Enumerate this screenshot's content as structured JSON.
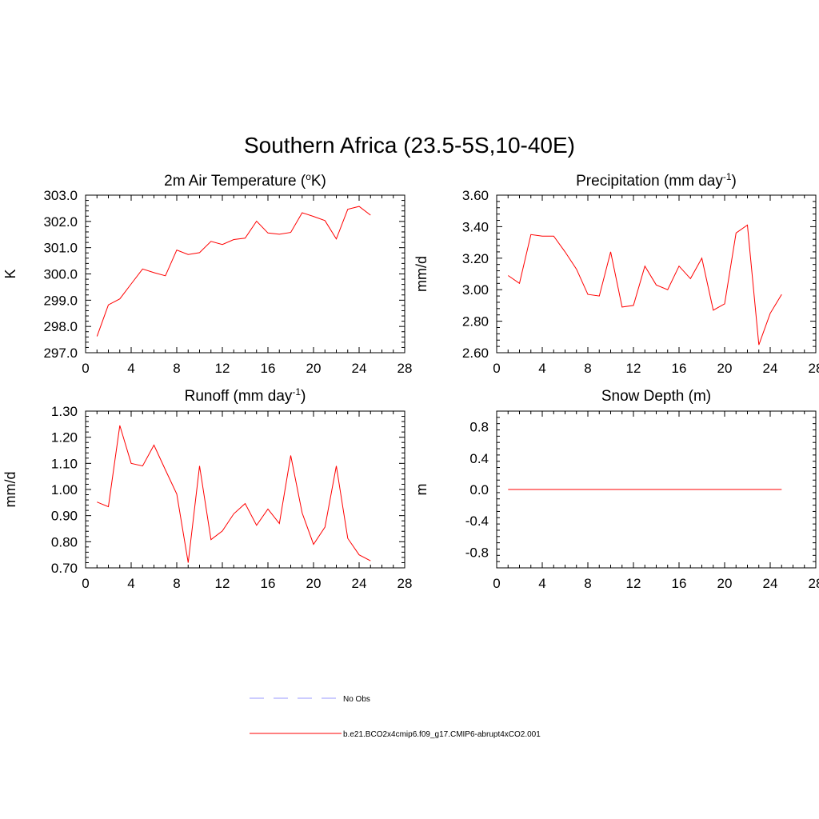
{
  "page_title": "Southern Africa (23.5-5S,10-40E)",
  "chart_data": [
    {
      "type": "line",
      "title": "2m Air Temperature (",
      "title_sup": "o",
      "title_tail": "K)",
      "ylabel": "K",
      "xlim": [
        0,
        28
      ],
      "ylim": [
        297.0,
        303.0
      ],
      "xticks": [
        "0",
        "4",
        "8",
        "12",
        "16",
        "20",
        "24",
        "28"
      ],
      "yticks": [
        "297.0",
        "298.0",
        "299.0",
        "300.0",
        "301.0",
        "302.0",
        "303.0"
      ],
      "grid": false,
      "series": [
        {
          "color": "#ff0000",
          "x": [
            1,
            2,
            3,
            4,
            5,
            6,
            7,
            8,
            9,
            10,
            11,
            12,
            13,
            14,
            15,
            16,
            17,
            18,
            19,
            20,
            21,
            22,
            23,
            24,
            25
          ],
          "values": [
            297.62,
            298.82,
            299.05,
            299.62,
            300.19,
            300.05,
            299.93,
            300.91,
            300.74,
            300.81,
            301.24,
            301.12,
            301.31,
            301.36,
            302.01,
            301.56,
            301.51,
            301.58,
            302.33,
            302.19,
            302.03,
            301.33,
            302.46,
            302.57,
            302.24
          ]
        }
      ]
    },
    {
      "type": "line",
      "title": "Precipitation (mm day",
      "title_sup": "-1",
      "title_tail": ")",
      "ylabel": "mm/d",
      "xlim": [
        0,
        28
      ],
      "ylim": [
        2.6,
        3.6
      ],
      "xticks": [
        "0",
        "4",
        "8",
        "12",
        "16",
        "20",
        "24",
        "28"
      ],
      "yticks": [
        "2.60",
        "2.80",
        "3.00",
        "3.20",
        "3.40",
        "3.60"
      ],
      "grid": false,
      "series": [
        {
          "color": "#ff0000",
          "x": [
            1,
            2,
            3,
            4,
            5,
            6,
            7,
            8,
            9,
            10,
            11,
            12,
            13,
            14,
            15,
            16,
            17,
            18,
            19,
            20,
            21,
            22,
            23,
            24,
            25
          ],
          "values": [
            3.09,
            3.04,
            3.35,
            3.34,
            3.34,
            3.24,
            3.13,
            2.97,
            2.96,
            3.24,
            2.89,
            2.9,
            3.15,
            3.03,
            3.0,
            3.15,
            3.07,
            3.2,
            2.87,
            2.91,
            3.36,
            3.41,
            2.65,
            2.85,
            2.97
          ]
        }
      ]
    },
    {
      "type": "line",
      "title": "Runoff (mm day",
      "title_sup": "-1",
      "title_tail": ")",
      "ylabel": "mm/d",
      "xlim": [
        0,
        28
      ],
      "ylim": [
        0.7,
        1.3
      ],
      "xticks": [
        "0",
        "4",
        "8",
        "12",
        "16",
        "20",
        "24",
        "28"
      ],
      "yticks": [
        "0.70",
        "0.80",
        "0.90",
        "1.00",
        "1.10",
        "1.20",
        "1.30"
      ],
      "grid": false,
      "series": [
        {
          "color": "#ff0000",
          "x": [
            1,
            2,
            3,
            4,
            5,
            6,
            7,
            8,
            9,
            10,
            11,
            12,
            13,
            14,
            15,
            16,
            17,
            18,
            19,
            20,
            21,
            22,
            23,
            24,
            25
          ],
          "values": [
            0.952,
            0.934,
            1.245,
            1.1,
            1.09,
            1.17,
            1.075,
            0.983,
            0.72,
            1.09,
            0.808,
            0.841,
            0.907,
            0.946,
            0.863,
            0.925,
            0.87,
            1.13,
            0.91,
            0.79,
            0.856,
            1.09,
            0.813,
            0.75,
            0.727
          ]
        }
      ]
    },
    {
      "type": "line",
      "title": "Snow Depth (m)",
      "title_sup": "",
      "title_tail": "",
      "ylabel": "m",
      "xlim": [
        0,
        28
      ],
      "ylim": [
        -1.0,
        1.0
      ],
      "xticks": [
        "0",
        "4",
        "8",
        "12",
        "16",
        "20",
        "24",
        "28"
      ],
      "yticks": [
        "-0.8",
        "-0.4",
        "0.0",
        "0.4",
        "0.8"
      ],
      "ytick_values": [
        -0.8,
        -0.4,
        0.0,
        0.4,
        0.8
      ],
      "grid": false,
      "series": [
        {
          "color": "#ff0000",
          "x": [
            1,
            25
          ],
          "values": [
            0.0,
            0.0
          ]
        }
      ]
    }
  ],
  "legend": [
    {
      "label": "No Obs",
      "color": "#9999ff",
      "style": "dashed"
    },
    {
      "label": "b.e21.BCO2x4cmip6.f09_g17.CMIP6-abrupt4xCO2.001",
      "color": "#ff0000",
      "style": "solid"
    }
  ]
}
